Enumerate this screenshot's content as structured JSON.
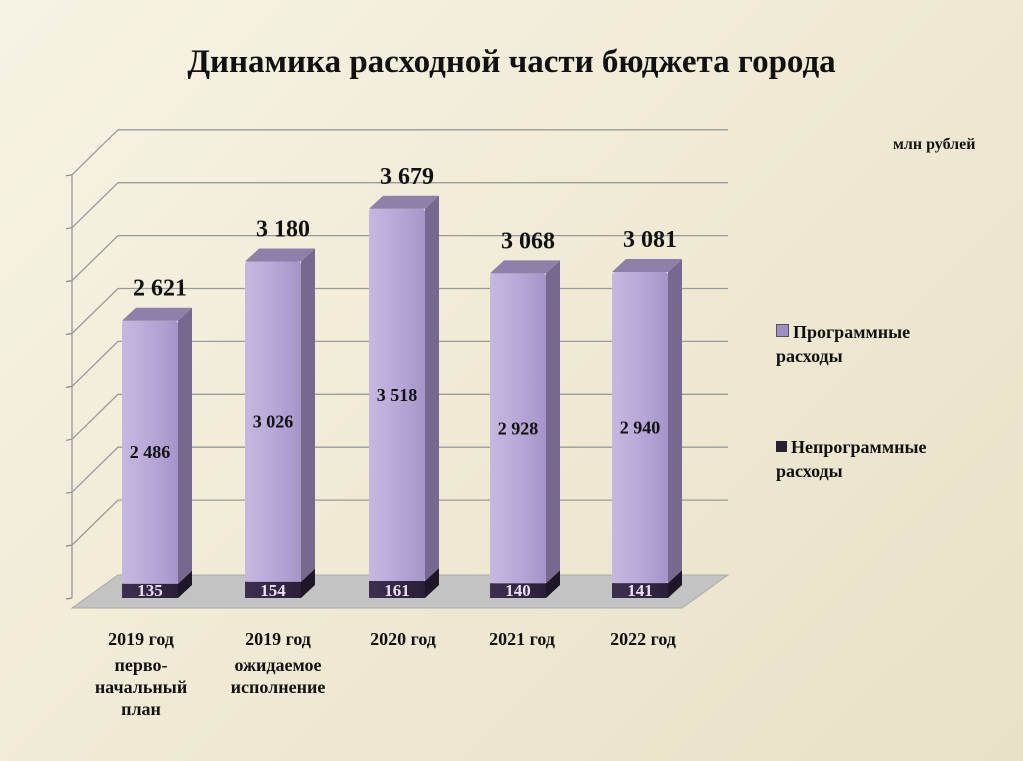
{
  "title": "Динамика  расходной части бюджета города",
  "unit": "млн рублей",
  "colors": {
    "programmatic": "#b4a2d3",
    "non_programmatic": "#3a2a4a",
    "floor": "#c3c3c3",
    "grid": "#9a9a9a"
  },
  "legend": [
    {
      "label": "Программные расходы",
      "line1": "Программные",
      "line2": "расходы",
      "color": "#a08dc4"
    },
    {
      "label": "Непрограммные расходы",
      "line1": "Непрограммные",
      "line2": "расходы",
      "color": "#2a1f33"
    }
  ],
  "categories": [
    {
      "line1": "2019 год",
      "line2": "перво-",
      "line3": "начальный",
      "line4": "план"
    },
    {
      "line1": "2019 год",
      "line2": "ожидаемое",
      "line3": "исполнение",
      "line4": ""
    },
    {
      "line1": "2020 год",
      "line2": "",
      "line3": "",
      "line4": ""
    },
    {
      "line1": "2021 год",
      "line2": "",
      "line3": "",
      "line4": ""
    },
    {
      "line1": "2022 год",
      "line2": "",
      "line3": "",
      "line4": ""
    }
  ],
  "chart_data": {
    "type": "bar",
    "stacked": true,
    "title": "Динамика  расходной части бюджета города",
    "unit": "млн рублей",
    "categories": [
      "2019 год перво-начальный план",
      "2019 год ожидаемое исполнение",
      "2020 год",
      "2021 год",
      "2022 год"
    ],
    "series": [
      {
        "name": "Непрограммные расходы",
        "values": [
          135,
          154,
          161,
          140,
          141
        ],
        "labels": [
          "135",
          "154",
          "161",
          "140",
          "141"
        ]
      },
      {
        "name": "Программные расходы",
        "values": [
          2486,
          3026,
          3518,
          2928,
          2940
        ],
        "labels": [
          "2 486",
          "3 026",
          "3 518",
          "2 928",
          "2 940"
        ]
      }
    ],
    "totals": [
      2621,
      3180,
      3679,
      3068,
      3081
    ],
    "total_labels": [
      "2 621",
      "3 180",
      "3 679",
      "3 068",
      "3 081"
    ],
    "ylim": [
      0,
      4000
    ],
    "grid": true,
    "legend_position": "right"
  }
}
